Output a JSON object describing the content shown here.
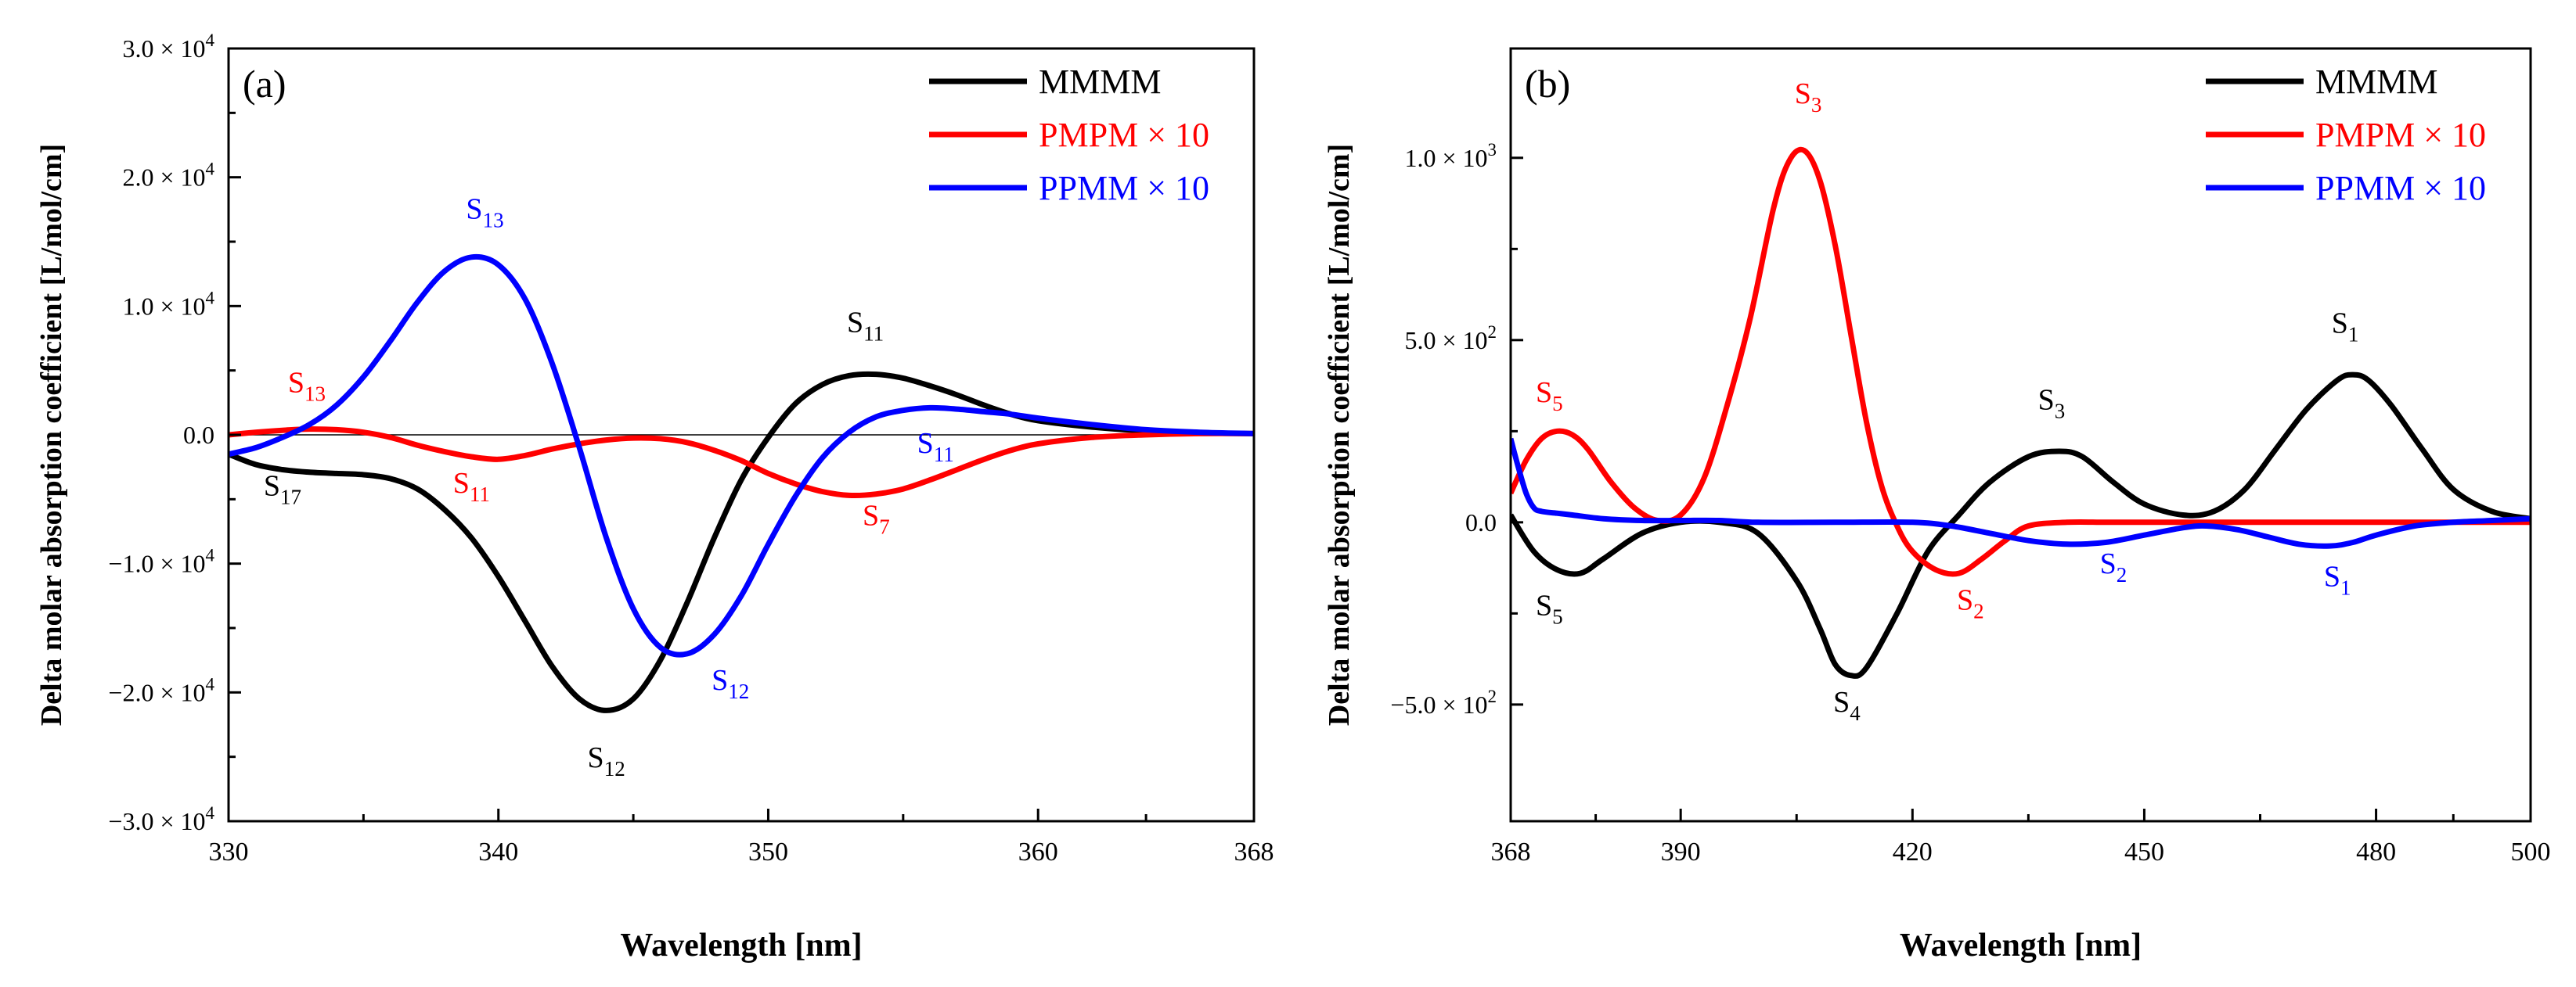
{
  "chart_data": [
    {
      "type": "line",
      "panel_label": "(a)",
      "xlabel": "Wavelength [nm]",
      "ylabel": "Delta molar absorption coefficient [L/mol/cm]",
      "xlim": [
        330,
        368
      ],
      "ylim": [
        -30000,
        30000
      ],
      "x_ticks": [
        330,
        340,
        350,
        360,
        368
      ],
      "x_tick_labels": [
        "330",
        "340",
        "350",
        "360",
        "368"
      ],
      "y_ticks": [
        -30000,
        -20000,
        -10000,
        0,
        10000,
        20000,
        30000
      ],
      "y_tick_labels": [
        {
          "mant": "−3.0 × 10",
          "exp": "4"
        },
        {
          "mant": "−2.0 × 10",
          "exp": "4"
        },
        {
          "mant": "−1.0 × 10",
          "exp": "4"
        },
        {
          "mant": "0.0",
          "exp": ""
        },
        {
          "mant": "1.0 × 10",
          "exp": "4"
        },
        {
          "mant": "2.0 × 10",
          "exp": "4"
        },
        {
          "mant": "3.0 × 10",
          "exp": "4"
        }
      ],
      "zero_line": true,
      "legend_position": "top-right",
      "series": [
        {
          "name": "MMMM",
          "color": "#000000",
          "x": [
            330,
            331,
            332,
            333,
            334,
            335,
            336,
            337,
            338,
            339,
            340,
            341,
            342,
            343,
            344,
            345,
            346,
            347,
            348,
            349,
            350,
            351,
            352,
            353,
            354,
            355,
            356,
            357,
            358,
            359,
            360,
            362,
            364,
            366,
            368
          ],
          "y": [
            -1500,
            -2300,
            -2700,
            -2900,
            -3000,
            -3100,
            -3400,
            -4200,
            -5800,
            -8000,
            -11000,
            -14500,
            -18000,
            -20500,
            -21400,
            -20500,
            -17500,
            -13000,
            -8000,
            -3500,
            -200,
            2400,
            3900,
            4600,
            4700,
            4400,
            3800,
            3100,
            2300,
            1600,
            1100,
            600,
            300,
            150,
            100
          ]
        },
        {
          "name": "PMPM × 10",
          "color": "#ff0000",
          "x": [
            330,
            331,
            332,
            333,
            334,
            335,
            336,
            337,
            338,
            339,
            340,
            341,
            342,
            343,
            344,
            345,
            346,
            347,
            348,
            349,
            350,
            351,
            352,
            353,
            354,
            355,
            356,
            357,
            358,
            359,
            360,
            362,
            364,
            366,
            368
          ],
          "y": [
            0,
            200,
            350,
            450,
            400,
            200,
            -200,
            -800,
            -1300,
            -1700,
            -1900,
            -1600,
            -1100,
            -700,
            -400,
            -250,
            -300,
            -600,
            -1200,
            -2000,
            -3000,
            -3800,
            -4400,
            -4700,
            -4600,
            -4200,
            -3500,
            -2700,
            -1900,
            -1200,
            -700,
            -200,
            0,
            100,
            100
          ]
        },
        {
          "name": "PPMM × 10",
          "color": "#0000ff",
          "x": [
            330,
            331,
            332,
            333,
            334,
            335,
            336,
            337,
            338,
            339,
            340,
            341,
            342,
            343,
            344,
            345,
            346,
            347,
            348,
            349,
            350,
            351,
            352,
            353,
            354,
            355,
            356,
            357,
            358,
            359,
            360,
            362,
            364,
            366,
            368
          ],
          "y": [
            -1500,
            -1000,
            -200,
            800,
            2300,
            4500,
            7300,
            10300,
            12700,
            13800,
            13200,
            10500,
            5500,
            -1000,
            -8000,
            -13500,
            -16500,
            -17000,
            -15500,
            -12500,
            -8500,
            -4800,
            -1800,
            200,
            1400,
            1900,
            2100,
            2000,
            1800,
            1600,
            1300,
            800,
            400,
            200,
            100
          ]
        }
      ],
      "annotations": [
        {
          "base": "S",
          "sub": "13",
          "color": "#0000ff",
          "x": 339.5,
          "y": 16800
        },
        {
          "base": "S",
          "sub": "13",
          "color": "#ff0000",
          "x": 332.9,
          "y": 3300
        },
        {
          "base": "S",
          "sub": "11",
          "color": "#000000",
          "x": 353.6,
          "y": 8000
        },
        {
          "base": "S",
          "sub": "17",
          "color": "#000000",
          "x": 332.0,
          "y": -4700
        },
        {
          "base": "S",
          "sub": "11",
          "color": "#ff0000",
          "x": 339.0,
          "y": -4500
        },
        {
          "base": "S",
          "sub": "11",
          "color": "#0000ff",
          "x": 356.2,
          "y": -1400
        },
        {
          "base": "S",
          "sub": "7",
          "color": "#ff0000",
          "x": 354.0,
          "y": -7000
        },
        {
          "base": "S",
          "sub": "12",
          "color": "#0000ff",
          "x": 348.6,
          "y": -19800
        },
        {
          "base": "S",
          "sub": "12",
          "color": "#000000",
          "x": 344.0,
          "y": -25800
        }
      ]
    },
    {
      "type": "line",
      "panel_label": "(b)",
      "xlabel": "Wavelength [nm]",
      "ylabel": "Delta molar absorption coefficient [L/mol/cm]",
      "xlim": [
        368,
        500
      ],
      "ylim": [
        -820,
        1300
      ],
      "x_ticks": [
        368,
        390,
        420,
        450,
        480,
        500
      ],
      "x_tick_labels": [
        "368",
        "390",
        "420",
        "450",
        "480",
        "500"
      ],
      "y_ticks": [
        -500,
        0,
        500,
        1000
      ],
      "y_tick_labels": [
        {
          "mant": "−5.0 × 10",
          "exp": "2"
        },
        {
          "mant": "0.0",
          "exp": ""
        },
        {
          "mant": "5.0 × 10",
          "exp": "2"
        },
        {
          "mant": "1.0 × 10",
          "exp": "3"
        }
      ],
      "zero_line": false,
      "legend_position": "top-right",
      "series": [
        {
          "name": "MMMM",
          "color": "#000000",
          "x": [
            368,
            371,
            374,
            377,
            380,
            385,
            390,
            395,
            400,
            405,
            408,
            410,
            412,
            414,
            418,
            422,
            426,
            430,
            435,
            439,
            442,
            446,
            450,
            455,
            459,
            463,
            467,
            471,
            475,
            477,
            479,
            482,
            486,
            490,
            495,
            500
          ],
          "y": [
            20,
            -80,
            -130,
            -140,
            -100,
            -30,
            0,
            0,
            -30,
            -160,
            -290,
            -390,
            -420,
            -400,
            -250,
            -80,
            20,
            110,
            180,
            195,
            180,
            110,
            50,
            20,
            30,
            90,
            200,
            310,
            390,
            405,
            390,
            320,
            200,
            90,
            30,
            10
          ]
        },
        {
          "name": "PMPM × 10",
          "color": "#ff0000",
          "x": [
            368,
            370,
            372,
            374,
            376,
            378,
            381,
            384,
            387,
            390,
            393,
            396,
            399,
            402,
            404,
            406,
            408,
            410,
            412,
            414,
            416,
            418,
            420,
            423,
            426,
            429,
            432,
            435,
            440,
            445,
            450,
            460,
            470,
            480,
            490,
            500
          ],
          "y": [
            80,
            170,
            230,
            250,
            240,
            200,
            110,
            40,
            5,
            20,
            120,
            320,
            560,
            860,
            990,
            1020,
            940,
            760,
            520,
            280,
            100,
            -10,
            -80,
            -130,
            -140,
            -100,
            -50,
            -10,
            0,
            0,
            0,
            0,
            0,
            0,
            0,
            0
          ]
        },
        {
          "name": "PPMM × 10",
          "color": "#0000ff",
          "x": [
            368,
            369,
            370,
            371,
            372,
            374,
            376,
            380,
            385,
            390,
            395,
            400,
            410,
            420,
            425,
            430,
            435,
            440,
            445,
            450,
            455,
            458,
            462,
            466,
            470,
            474,
            477,
            480,
            485,
            490,
            495,
            500
          ],
          "y": [
            230,
            150,
            80,
            40,
            30,
            25,
            20,
            10,
            5,
            5,
            5,
            0,
            0,
            0,
            -10,
            -30,
            -50,
            -60,
            -55,
            -35,
            -15,
            -10,
            -20,
            -40,
            -60,
            -65,
            -55,
            -35,
            -10,
            0,
            5,
            10
          ]
        }
      ],
      "annotations": [
        {
          "base": "S",
          "sub": "3",
          "color": "#ff0000",
          "x": 406.5,
          "y": 1150
        },
        {
          "base": "S",
          "sub": "5",
          "color": "#ff0000",
          "x": 373.0,
          "y": 330
        },
        {
          "base": "S",
          "sub": "1",
          "color": "#000000",
          "x": 476.0,
          "y": 520
        },
        {
          "base": "S",
          "sub": "3",
          "color": "#000000",
          "x": 438.0,
          "y": 310
        },
        {
          "base": "S",
          "sub": "5",
          "color": "#000000",
          "x": 373.0,
          "y": -255
        },
        {
          "base": "S",
          "sub": "2",
          "color": "#ff0000",
          "x": 427.5,
          "y": -240
        },
        {
          "base": "S",
          "sub": "2",
          "color": "#0000ff",
          "x": 446.0,
          "y": -140
        },
        {
          "base": "S",
          "sub": "1",
          "color": "#0000ff",
          "x": 475.0,
          "y": -175
        },
        {
          "base": "S",
          "sub": "4",
          "color": "#000000",
          "x": 411.5,
          "y": -520
        }
      ]
    }
  ]
}
